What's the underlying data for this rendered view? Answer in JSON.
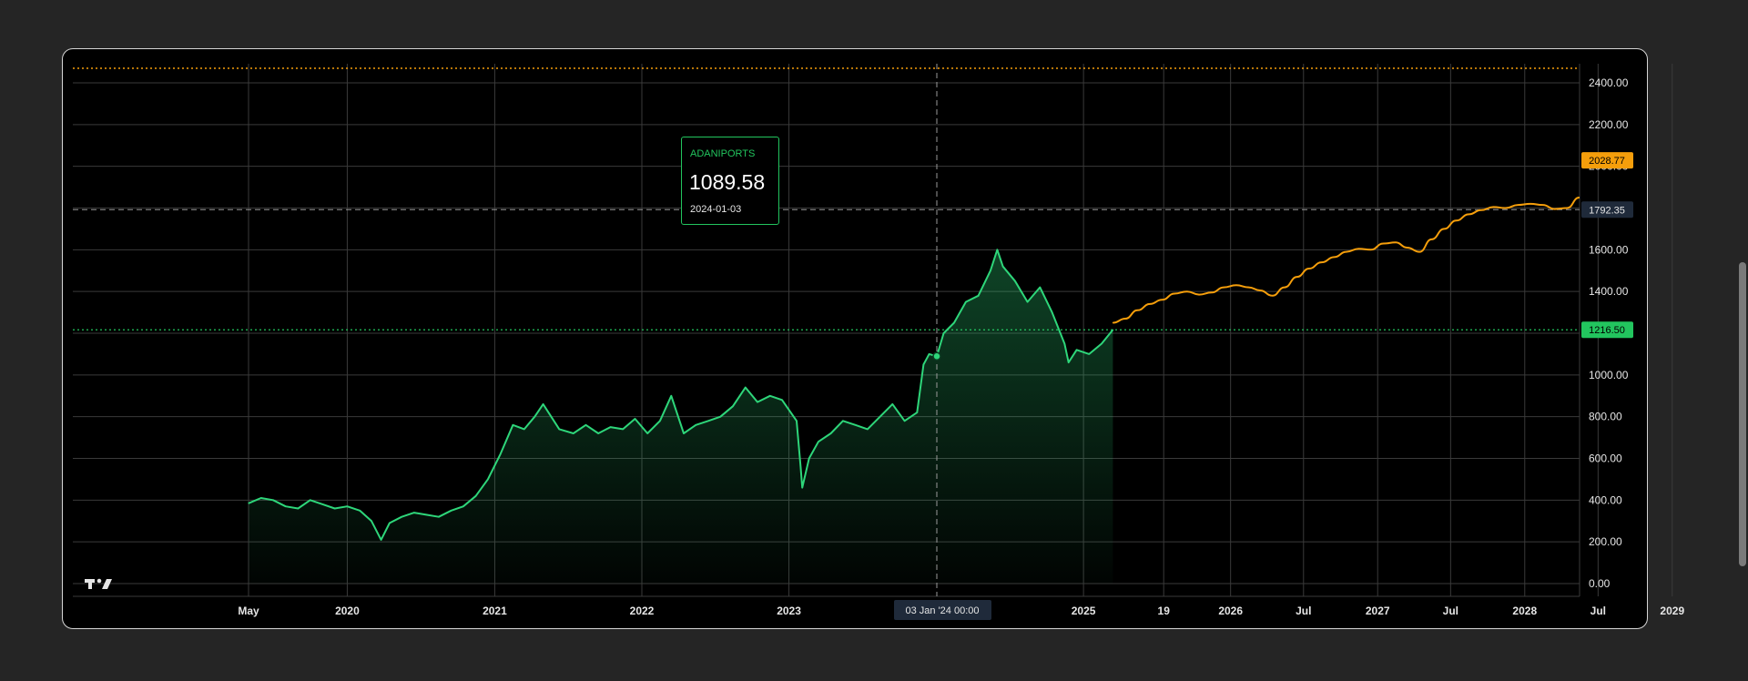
{
  "tooltip": {
    "symbol": "ADANIPORTS",
    "value": "1089.58",
    "date": "2024-01-03"
  },
  "crosshair": {
    "time_label": "03 Jan '24   00:00",
    "price_label": "1792.35"
  },
  "last_price_label": "1216.50",
  "forecast_end_label": "2028.77",
  "logo": "TV",
  "colors": {
    "background": "#000000",
    "page": "#252525",
    "grid": "#3a3a3a",
    "history_line": "#2ed67a",
    "forecast_line": "#f59e0b",
    "last_price": "#22c55e",
    "top_dotted": "#f59e0b"
  },
  "chart_data": {
    "type": "area",
    "ylim": [
      0,
      2500
    ],
    "y_ticks": [
      "0.00",
      "200.00",
      "400.00",
      "600.00",
      "800.00",
      "1000.00",
      "1200.00",
      "1400.00",
      "1600.00",
      "2000.00",
      "2200.00",
      "2400.00"
    ],
    "x_ticks": [
      "May",
      "2020",
      "2021",
      "2022",
      "2023",
      "2025",
      "19",
      "2026",
      "Jul",
      "2027",
      "Jul",
      "2028",
      "Jul",
      "2029"
    ],
    "x_tick_dates": [
      "2019-05-01",
      "2020-01-01",
      "2021-01-01",
      "2022-01-01",
      "2023-01-01",
      "2025-01-01",
      "2025-07-19",
      "2026-01-01",
      "2026-07-01",
      "2027-01-01",
      "2027-07-01",
      "2028-01-01",
      "2028-07-01",
      "2029-01-01"
    ],
    "horizontal_lines": {
      "top_dotted": 2470,
      "crosshair": 1792.35,
      "last_price": 1216.5
    },
    "crosshair_date": "2024-01-03",
    "series": [
      {
        "style": "area",
        "x": [
          "2019-05-01",
          "2019-06-01",
          "2019-07-01",
          "2019-08-01",
          "2019-09-01",
          "2019-10-01",
          "2019-11-01",
          "2019-12-01",
          "2020-01-01",
          "2020-02-01",
          "2020-03-01",
          "2020-03-25",
          "2020-04-15",
          "2020-05-15",
          "2020-06-15",
          "2020-07-15",
          "2020-08-15",
          "2020-09-15",
          "2020-10-15",
          "2020-11-15",
          "2020-12-15",
          "2021-01-15",
          "2021-02-15",
          "2021-03-15",
          "2021-04-10",
          "2021-05-01",
          "2021-06-10",
          "2021-07-15",
          "2021-08-15",
          "2021-09-15",
          "2021-10-15",
          "2021-11-15",
          "2021-12-15",
          "2022-01-15",
          "2022-02-15",
          "2022-03-15",
          "2022-04-15",
          "2022-05-15",
          "2022-06-15",
          "2022-07-15",
          "2022-08-15",
          "2022-09-15",
          "2022-10-15",
          "2022-11-15",
          "2022-12-15",
          "2023-01-20",
          "2023-01-30",
          "2023-02-03",
          "2023-02-20",
          "2023-03-15",
          "2023-04-15",
          "2023-05-15",
          "2023-06-15",
          "2023-07-15",
          "2023-08-15",
          "2023-09-15",
          "2023-10-15",
          "2023-11-15",
          "2023-12-01",
          "2023-12-15",
          "2024-01-03",
          "2024-01-20",
          "2024-02-15",
          "2024-03-15",
          "2024-04-15",
          "2024-05-15",
          "2024-06-01",
          "2024-06-15",
          "2024-07-15",
          "2024-08-15",
          "2024-09-15",
          "2024-10-15",
          "2024-11-15",
          "2024-11-25",
          "2024-12-15",
          "2025-01-15",
          "2025-02-15",
          "2025-03-15"
        ],
        "values": [
          385,
          410,
          400,
          370,
          360,
          400,
          380,
          360,
          370,
          350,
          300,
          210,
          290,
          320,
          340,
          330,
          320,
          350,
          370,
          420,
          500,
          620,
          760,
          740,
          800,
          860,
          740,
          720,
          760,
          720,
          750,
          740,
          790,
          720,
          780,
          900,
          720,
          760,
          780,
          800,
          850,
          940,
          870,
          900,
          880,
          780,
          560,
          460,
          600,
          680,
          720,
          780,
          760,
          740,
          800,
          860,
          780,
          820,
          1050,
          1100,
          1089.58,
          1200,
          1250,
          1350,
          1380,
          1500,
          1600,
          1520,
          1450,
          1350,
          1420,
          1300,
          1150,
          1060,
          1120,
          1100,
          1150,
          1216.5
        ]
      },
      {
        "style": "line",
        "x": [
          "2025-03-15",
          "2025-04-15",
          "2025-05-15",
          "2025-06-15",
          "2025-07-15",
          "2025-08-15",
          "2025-09-15",
          "2025-10-15",
          "2025-11-15",
          "2025-12-15",
          "2026-01-15",
          "2026-02-15",
          "2026-03-15",
          "2026-04-15",
          "2026-05-15",
          "2026-06-15",
          "2026-07-15",
          "2026-08-15",
          "2026-09-15",
          "2026-10-15",
          "2026-11-15",
          "2026-12-15",
          "2027-01-15",
          "2027-02-15",
          "2027-03-15",
          "2027-04-15",
          "2027-05-15",
          "2027-06-15",
          "2027-07-15",
          "2027-08-15",
          "2027-09-15",
          "2027-10-15",
          "2027-11-15",
          "2027-12-15",
          "2028-01-15",
          "2028-02-15",
          "2028-03-15",
          "2028-04-15",
          "2028-05-15",
          "2028-06-15",
          "2028-07-15",
          "2028-08-15",
          "2028-09-15",
          "2028-10-15",
          "2028-11-15",
          "2028-12-15",
          "2029-01-15",
          "2029-02-15",
          "2029-03-15",
          "2029-04-15",
          "2029-05-10"
        ],
        "values": [
          1250,
          1270,
          1310,
          1340,
          1360,
          1390,
          1400,
          1385,
          1395,
          1420,
          1430,
          1420,
          1405,
          1380,
          1420,
          1470,
          1510,
          1540,
          1565,
          1590,
          1605,
          1600,
          1630,
          1635,
          1610,
          1590,
          1650,
          1700,
          1740,
          1770,
          1790,
          1805,
          1800,
          1815,
          1820,
          1815,
          1795,
          1800,
          1850,
          1900,
          1950,
          1980,
          2000,
          2020,
          2010,
          2000,
          2030,
          2025,
          2015,
          2000,
          2028.77
        ]
      }
    ]
  }
}
